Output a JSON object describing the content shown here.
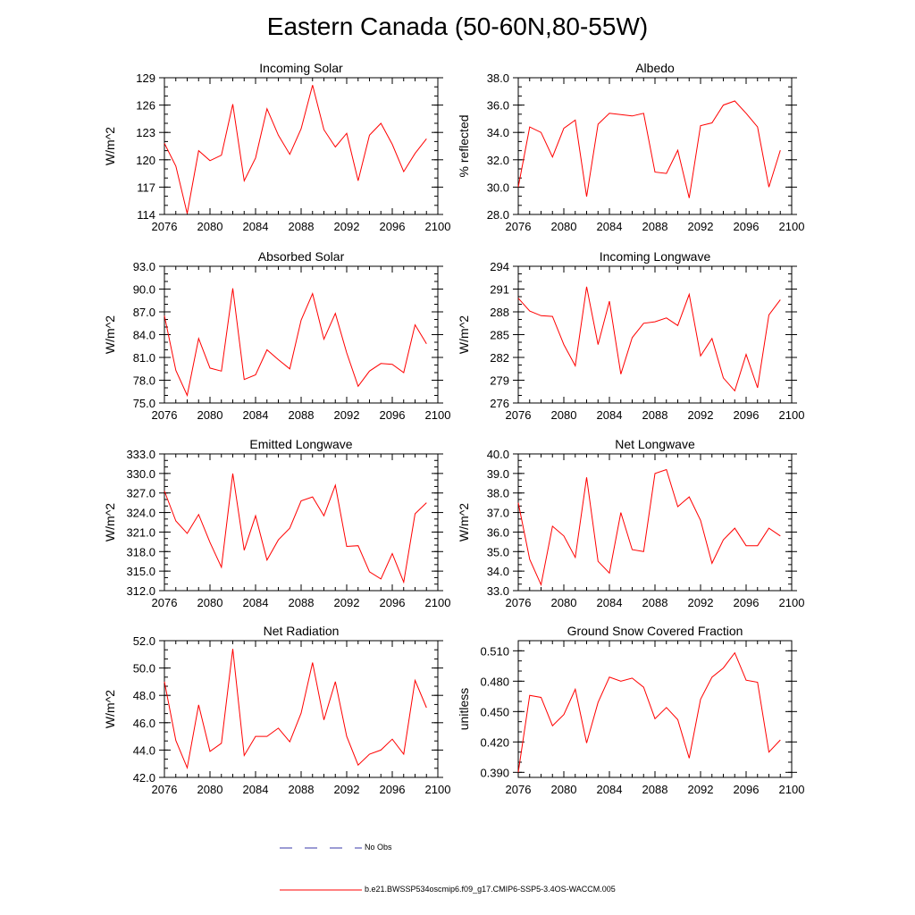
{
  "title": "Eastern Canada (50-60N,80-55W)",
  "colors": {
    "model": "#ff0000",
    "obs": "#3a3aa8",
    "axis": "#000000"
  },
  "legend": {
    "obs_label": "No Obs",
    "model_label": "b.e21.BWSSP534oscmip6.f09_g17.CMIP6-SSP5-3.4OS-WACCM.005"
  },
  "chart_data": [
    {
      "type": "line",
      "title": "Incoming Solar",
      "ylabel": "W/m^2",
      "xlim": [
        2076,
        2100
      ],
      "xticks": [
        "2076",
        "2080",
        "2084",
        "2088",
        "2092",
        "2096",
        "2100"
      ],
      "ylim": [
        114,
        129
      ],
      "yticks": [
        "114",
        "117",
        "120",
        "123",
        "126",
        "129"
      ],
      "x": [
        2076,
        2077,
        2078,
        2079,
        2080,
        2081,
        2082,
        2083,
        2084,
        2085,
        2086,
        2087,
        2088,
        2089,
        2090,
        2091,
        2092,
        2093,
        2094,
        2095,
        2096,
        2097,
        2098,
        2099
      ],
      "values": [
        121.8,
        119.3,
        114.1,
        121.0,
        119.9,
        120.5,
        126.1,
        117.7,
        120.2,
        125.6,
        122.7,
        120.6,
        123.4,
        128.2,
        123.3,
        121.4,
        122.9,
        117.7,
        122.7,
        124.0,
        121.7,
        118.7,
        120.7,
        122.3
      ]
    },
    {
      "type": "line",
      "title": "Albedo",
      "ylabel": "% reflected",
      "xlim": [
        2076,
        2100
      ],
      "xticks": [
        "2076",
        "2080",
        "2084",
        "2088",
        "2092",
        "2096",
        "2100"
      ],
      "ylim": [
        28.0,
        38.0
      ],
      "yticks": [
        "28.0",
        "30.0",
        "32.0",
        "34.0",
        "36.0",
        "38.0"
      ],
      "x": [
        2076,
        2077,
        2078,
        2079,
        2080,
        2081,
        2082,
        2083,
        2084,
        2085,
        2086,
        2087,
        2088,
        2089,
        2090,
        2091,
        2092,
        2093,
        2094,
        2095,
        2096,
        2097,
        2098,
        2099
      ],
      "values": [
        30.0,
        34.4,
        34.0,
        32.2,
        34.3,
        34.9,
        29.3,
        34.6,
        35.4,
        35.3,
        35.2,
        35.4,
        31.1,
        31.0,
        32.7,
        29.2,
        34.5,
        34.7,
        36.0,
        36.3,
        35.4,
        34.4,
        30.0,
        32.7
      ]
    },
    {
      "type": "line",
      "title": "Absorbed Solar",
      "ylabel": "W/m^2",
      "xlim": [
        2076,
        2100
      ],
      "xticks": [
        "2076",
        "2080",
        "2084",
        "2088",
        "2092",
        "2096",
        "2100"
      ],
      "ylim": [
        75.0,
        93.0
      ],
      "yticks": [
        "75.0",
        "78.0",
        "81.0",
        "84.0",
        "87.0",
        "90.0",
        "93.0"
      ],
      "x": [
        2076,
        2077,
        2078,
        2079,
        2080,
        2081,
        2082,
        2083,
        2084,
        2085,
        2086,
        2087,
        2088,
        2089,
        2090,
        2091,
        2092,
        2093,
        2094,
        2095,
        2096,
        2097,
        2098,
        2099
      ],
      "values": [
        86.5,
        79.3,
        76.0,
        83.5,
        79.6,
        79.2,
        90.1,
        78.1,
        78.7,
        82.0,
        80.7,
        79.5,
        85.9,
        89.4,
        83.4,
        86.8,
        81.6,
        77.2,
        79.2,
        80.2,
        80.1,
        79.0,
        85.3,
        82.8
      ]
    },
    {
      "type": "line",
      "title": "Incoming Longwave",
      "ylabel": "W/m^2",
      "xlim": [
        2076,
        2100
      ],
      "xticks": [
        "2076",
        "2080",
        "2084",
        "2088",
        "2092",
        "2096",
        "2100"
      ],
      "ylim": [
        276,
        294
      ],
      "yticks": [
        "276",
        "279",
        "282",
        "285",
        "288",
        "291",
        "294"
      ],
      "x": [
        2076,
        2077,
        2078,
        2079,
        2080,
        2081,
        2082,
        2083,
        2084,
        2085,
        2086,
        2087,
        2088,
        2089,
        2090,
        2091,
        2092,
        2093,
        2094,
        2095,
        2096,
        2097,
        2098,
        2099
      ],
      "values": [
        289.8,
        288.1,
        287.5,
        287.4,
        283.7,
        280.9,
        291.3,
        283.7,
        289.4,
        279.8,
        284.6,
        286.5,
        286.7,
        287.2,
        286.2,
        290.3,
        282.2,
        284.5,
        279.3,
        277.6,
        282.4,
        278.0,
        287.6,
        289.6
      ]
    },
    {
      "type": "line",
      "title": "Emitted Longwave",
      "ylabel": "W/m^2",
      "xlim": [
        2076,
        2100
      ],
      "xticks": [
        "2076",
        "2080",
        "2084",
        "2088",
        "2092",
        "2096",
        "2100"
      ],
      "ylim": [
        312.0,
        333.0
      ],
      "yticks": [
        "312.0",
        "315.0",
        "318.0",
        "321.0",
        "324.0",
        "327.0",
        "330.0",
        "333.0"
      ],
      "x": [
        2076,
        2077,
        2078,
        2079,
        2080,
        2081,
        2082,
        2083,
        2084,
        2085,
        2086,
        2087,
        2088,
        2089,
        2090,
        2091,
        2092,
        2093,
        2094,
        2095,
        2096,
        2097,
        2098,
        2099
      ],
      "values": [
        327.3,
        322.7,
        320.8,
        323.7,
        319.4,
        315.6,
        330.0,
        318.2,
        323.5,
        316.7,
        319.8,
        321.6,
        325.8,
        326.4,
        323.5,
        328.2,
        318.8,
        318.9,
        314.9,
        313.8,
        317.7,
        313.3,
        323.8,
        325.5
      ]
    },
    {
      "type": "line",
      "title": "Net Longwave",
      "ylabel": "W/m^2",
      "xlim": [
        2076,
        2100
      ],
      "xticks": [
        "2076",
        "2080",
        "2084",
        "2088",
        "2092",
        "2096",
        "2100"
      ],
      "ylim": [
        33.0,
        40.0
      ],
      "yticks": [
        "33.0",
        "34.0",
        "35.0",
        "36.0",
        "37.0",
        "38.0",
        "39.0",
        "40.0"
      ],
      "x": [
        2076,
        2077,
        2078,
        2079,
        2080,
        2081,
        2082,
        2083,
        2084,
        2085,
        2086,
        2087,
        2088,
        2089,
        2090,
        2091,
        2092,
        2093,
        2094,
        2095,
        2096,
        2097,
        2098,
        2099
      ],
      "values": [
        37.5,
        34.6,
        33.3,
        36.3,
        35.8,
        34.7,
        38.8,
        34.5,
        33.9,
        37.0,
        35.1,
        35.0,
        39.0,
        39.2,
        37.3,
        37.8,
        36.6,
        34.4,
        35.6,
        36.2,
        35.3,
        35.3,
        36.2,
        35.8
      ]
    },
    {
      "type": "line",
      "title": "Net Radiation",
      "ylabel": "W/m^2",
      "xlim": [
        2076,
        2100
      ],
      "xticks": [
        "2076",
        "2080",
        "2084",
        "2088",
        "2092",
        "2096",
        "2100"
      ],
      "ylim": [
        42.0,
        52.0
      ],
      "yticks": [
        "42.0",
        "44.0",
        "46.0",
        "48.0",
        "50.0",
        "52.0"
      ],
      "x": [
        2076,
        2077,
        2078,
        2079,
        2080,
        2081,
        2082,
        2083,
        2084,
        2085,
        2086,
        2087,
        2088,
        2089,
        2090,
        2091,
        2092,
        2093,
        2094,
        2095,
        2096,
        2097,
        2098,
        2099
      ],
      "values": [
        49.0,
        44.7,
        42.7,
        47.3,
        43.9,
        44.5,
        51.4,
        43.6,
        45.0,
        45.0,
        45.6,
        44.6,
        46.7,
        50.4,
        46.2,
        49.0,
        45.0,
        42.9,
        43.7,
        44.0,
        44.8,
        43.7,
        49.1,
        47.1
      ]
    },
    {
      "type": "line",
      "title": "Ground Snow Covered Fraction",
      "ylabel": "unitless",
      "xlim": [
        2076,
        2100
      ],
      "xticks": [
        "2076",
        "2080",
        "2084",
        "2088",
        "2092",
        "2096",
        "2100"
      ],
      "ylim": [
        0.385,
        0.52
      ],
      "yticks": [
        "0.390",
        "0.420",
        "0.450",
        "0.480",
        "0.510"
      ],
      "x": [
        2076,
        2077,
        2078,
        2079,
        2080,
        2081,
        2082,
        2083,
        2084,
        2085,
        2086,
        2087,
        2088,
        2089,
        2090,
        2091,
        2092,
        2093,
        2094,
        2095,
        2096,
        2097,
        2098,
        2099
      ],
      "values": [
        0.39,
        0.466,
        0.464,
        0.436,
        0.447,
        0.472,
        0.419,
        0.459,
        0.484,
        0.48,
        0.483,
        0.474,
        0.443,
        0.454,
        0.442,
        0.404,
        0.462,
        0.484,
        0.493,
        0.508,
        0.481,
        0.479,
        0.41,
        0.422
      ]
    }
  ]
}
